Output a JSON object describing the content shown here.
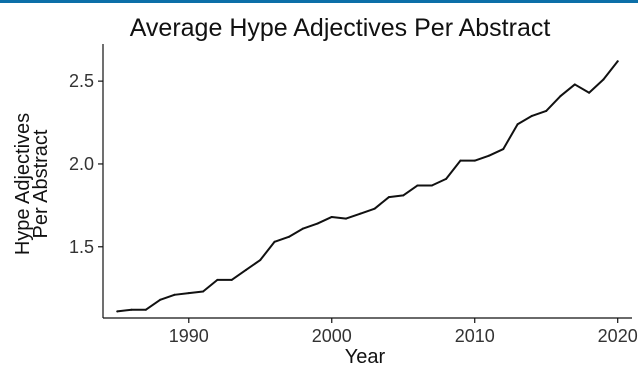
{
  "accent_color": "#0c6fa8",
  "chart_data": {
    "type": "line",
    "title": "Average Hype Adjectives Per Abstract",
    "xlabel": "Year",
    "ylabel_lines": [
      "Hype Adjectives",
      "Per Abstract"
    ],
    "xlim": [
      1984,
      2021
    ],
    "ylim": [
      1.07,
      2.7
    ],
    "x_ticks": [
      1990,
      2000,
      2010,
      2020
    ],
    "y_ticks": [
      1.5,
      2.0,
      2.5
    ],
    "x_tick_labels": [
      "1990",
      "2000",
      "2010",
      "2020"
    ],
    "y_tick_labels": [
      "1.5",
      "2.0",
      "2.5"
    ],
    "grid": false,
    "line_color": "#111111",
    "x": [
      1985,
      1986,
      1987,
      1988,
      1989,
      1990,
      1991,
      1992,
      1993,
      1994,
      1995,
      1996,
      1997,
      1998,
      1999,
      2000,
      2001,
      2002,
      2003,
      2004,
      2005,
      2006,
      2007,
      2008,
      2009,
      2010,
      2011,
      2012,
      2013,
      2014,
      2015,
      2016,
      2017,
      2018,
      2019,
      2020
    ],
    "y": [
      1.11,
      1.12,
      1.12,
      1.18,
      1.21,
      1.22,
      1.23,
      1.3,
      1.3,
      1.36,
      1.42,
      1.53,
      1.56,
      1.61,
      1.64,
      1.68,
      1.67,
      1.7,
      1.73,
      1.8,
      1.81,
      1.87,
      1.87,
      1.91,
      2.02,
      2.02,
      2.05,
      2.09,
      2.24,
      2.29,
      2.32,
      2.41,
      2.48,
      2.43,
      2.51,
      2.62
    ]
  }
}
